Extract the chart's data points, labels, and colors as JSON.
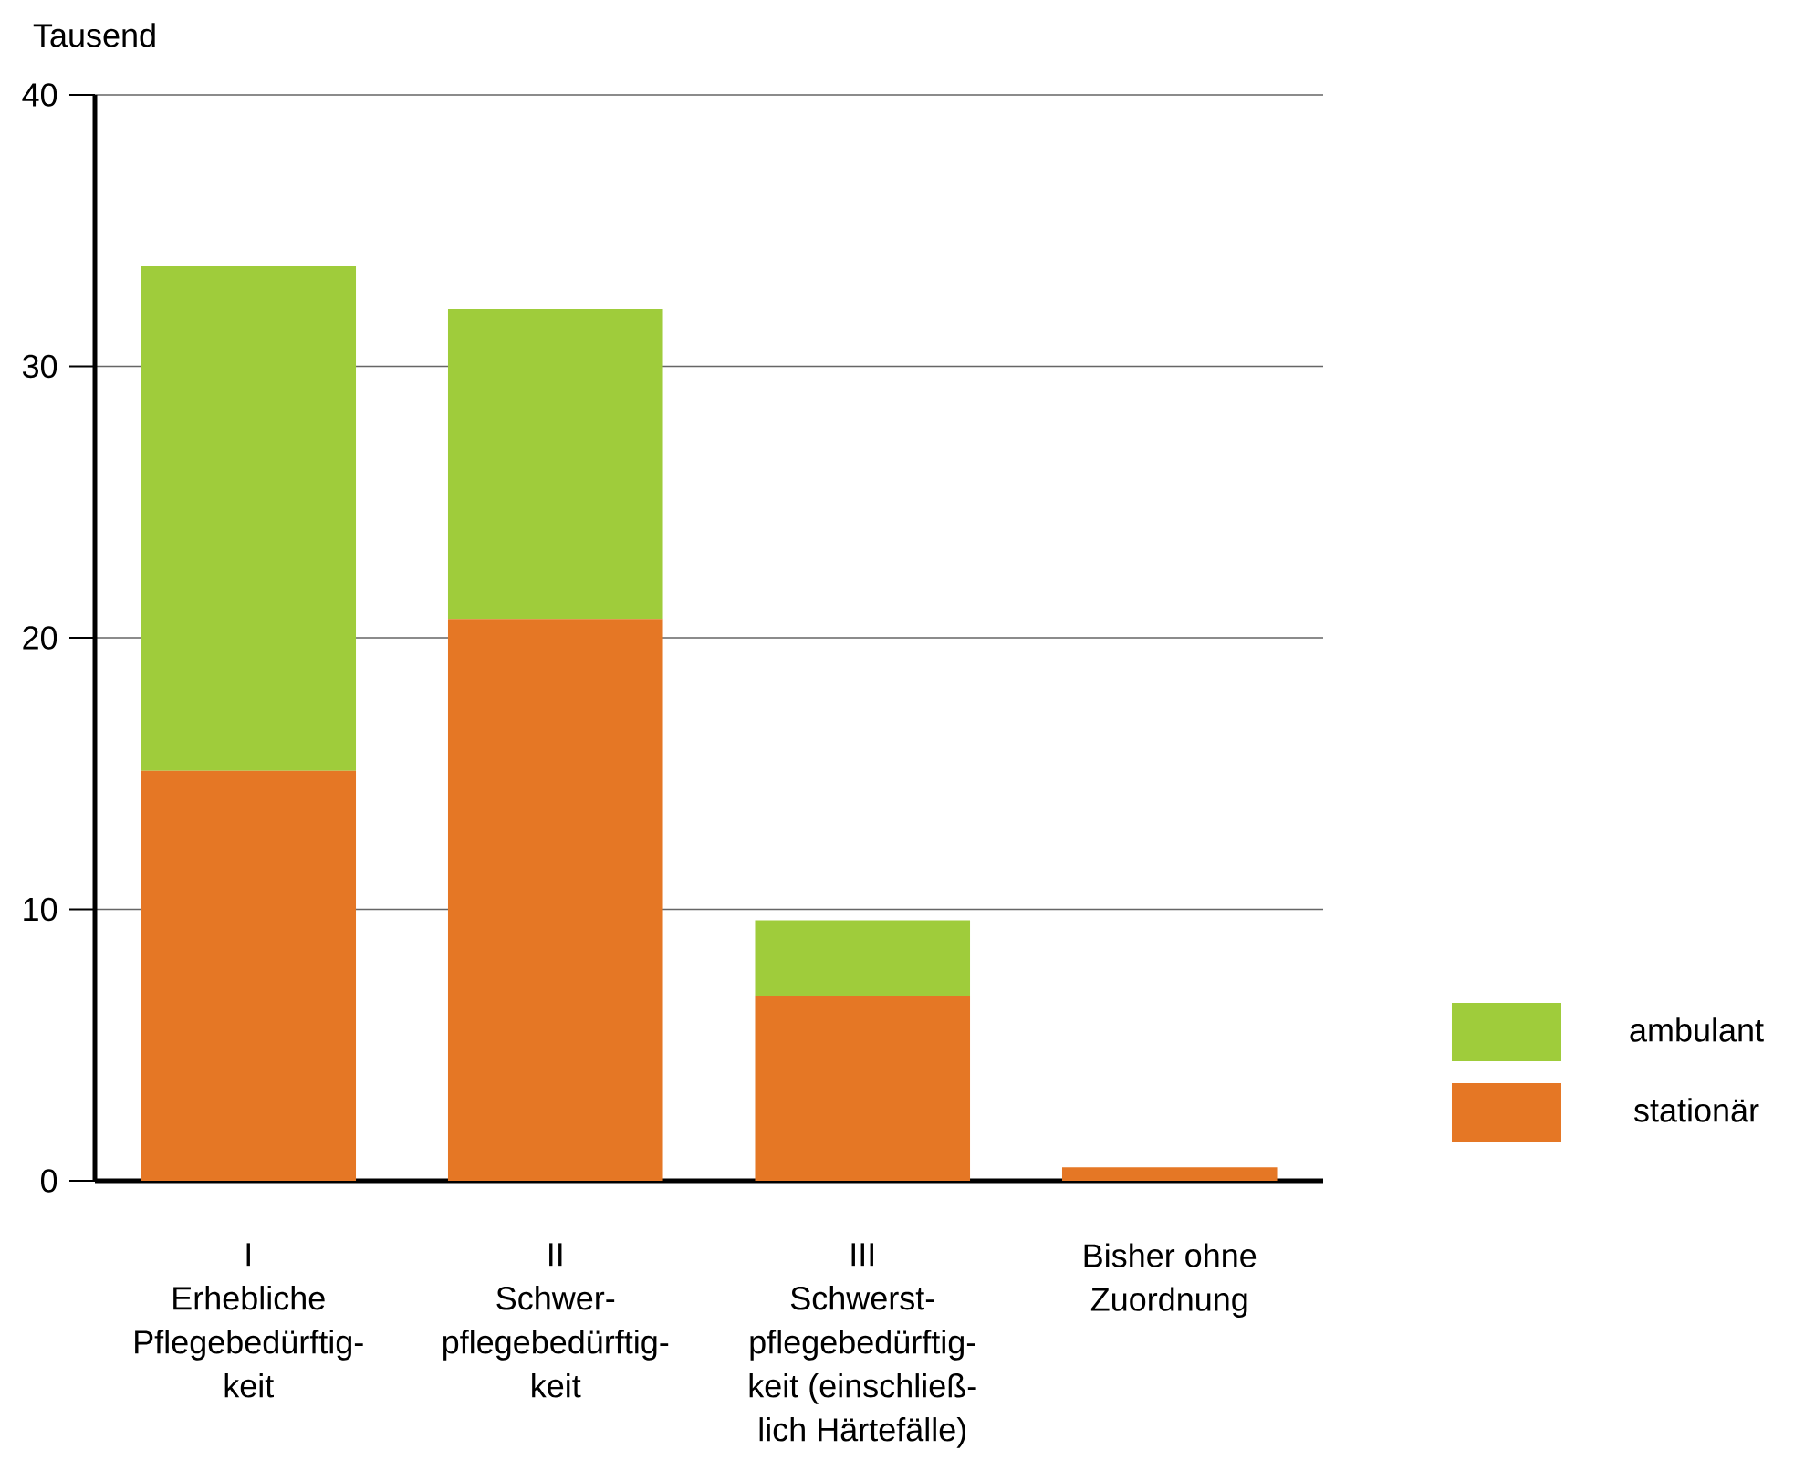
{
  "chart_data": {
    "type": "bar",
    "stacked": true,
    "ylabel": "Tausend",
    "categories": [
      "I\nErhebliche\nPflegebedürftig-\nkeit",
      "II\nSchwer-\npflegebedürftig-\nkeit",
      "III\nSchwerst-\npflegebedürftig-\nkeit (einschließ-\nlich Härtefälle)",
      "Bisher ohne\nZuordnung"
    ],
    "series": [
      {
        "name": "stationär",
        "color": "#e57725",
        "values": [
          15.1,
          20.7,
          6.8,
          0.5
        ]
      },
      {
        "name": "ambulant",
        "color": "#9fcc3b",
        "values": [
          18.6,
          11.4,
          2.8,
          0
        ]
      }
    ],
    "ylim": [
      0,
      40
    ],
    "yticks": [
      0,
      10,
      20,
      30,
      40
    ],
    "grid": "y",
    "legend": "right"
  }
}
